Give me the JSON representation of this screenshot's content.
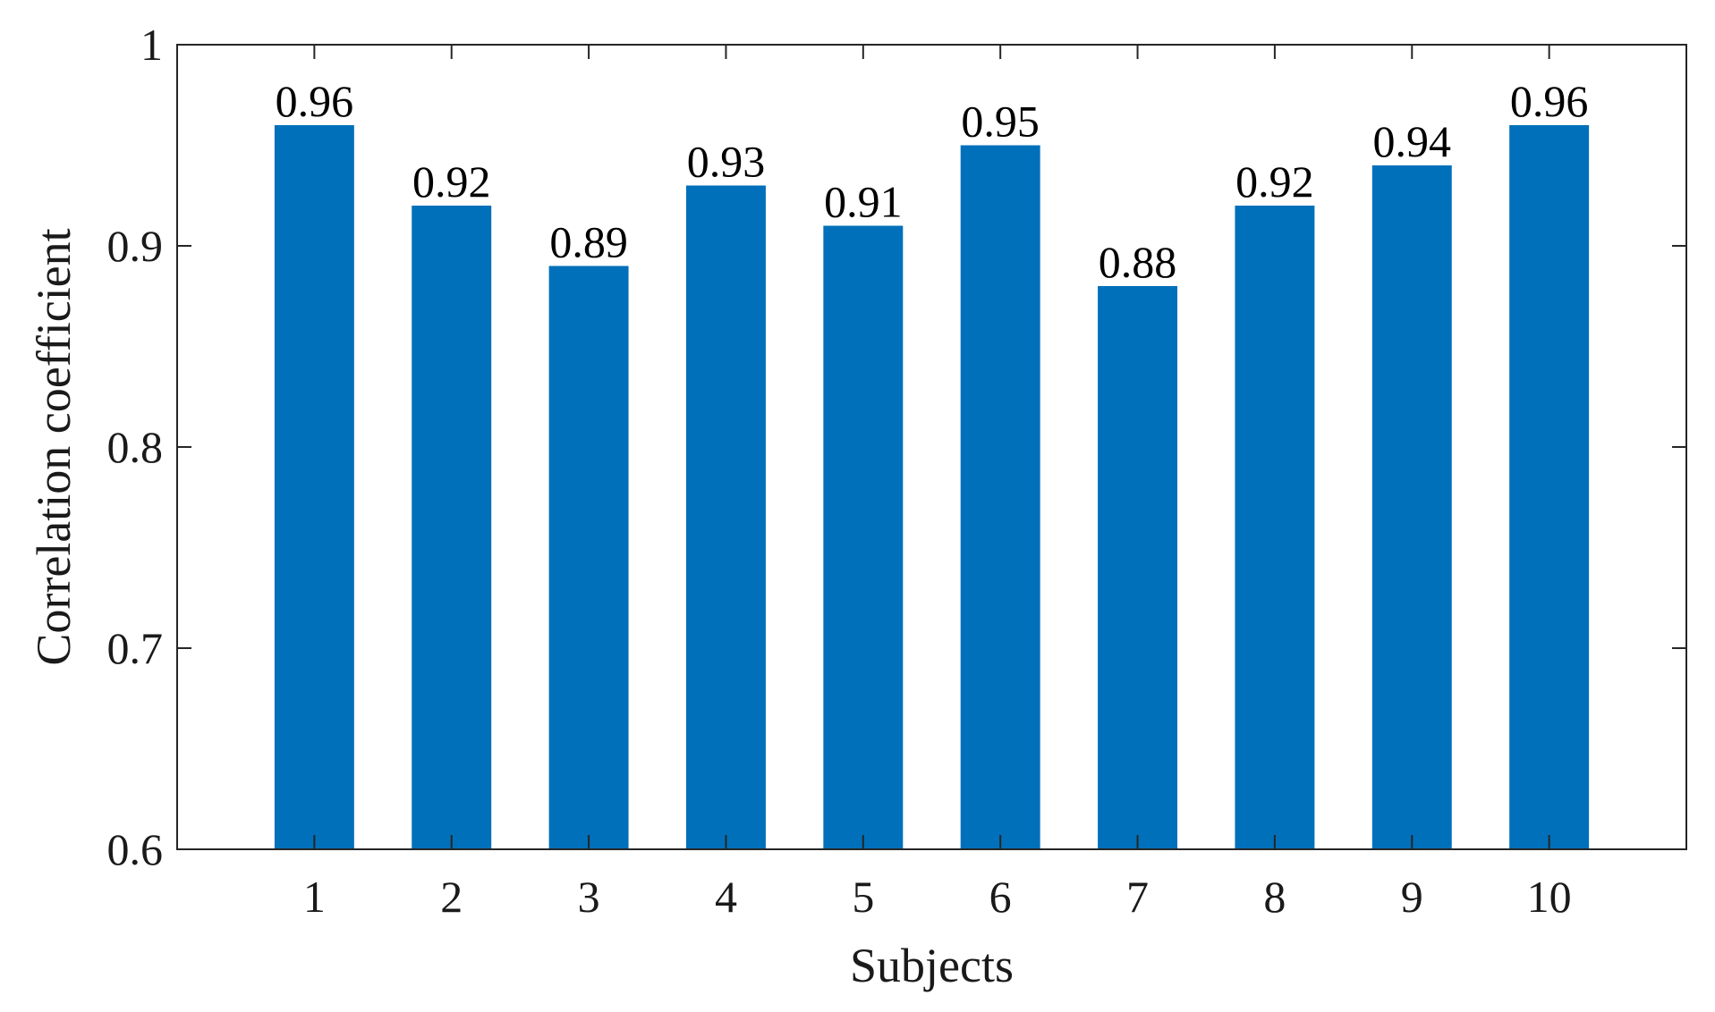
{
  "chart_data": {
    "type": "bar",
    "title": "",
    "xlabel": "Subjects",
    "ylabel": "Correlation coefficient",
    "categories": [
      "1",
      "2",
      "3",
      "4",
      "5",
      "6",
      "7",
      "8",
      "9",
      "10"
    ],
    "values": [
      0.96,
      0.92,
      0.89,
      0.93,
      0.91,
      0.95,
      0.88,
      0.92,
      0.94,
      0.96
    ],
    "data_labels": [
      "0.96",
      "0.92",
      "0.89",
      "0.93",
      "0.91",
      "0.95",
      "0.88",
      "0.92",
      "0.94",
      "0.96"
    ],
    "ylim": [
      0.6,
      1.0
    ],
    "yticks": [
      0.6,
      0.7,
      0.8,
      0.9,
      1.0
    ],
    "ytick_labels": [
      "0.6",
      "0.7",
      "0.8",
      "0.9",
      "1"
    ],
    "grid": false,
    "legend": "none",
    "colors": {
      "bar": "#0070BA",
      "axis": "#262626",
      "text": "#1a1a1a"
    }
  }
}
